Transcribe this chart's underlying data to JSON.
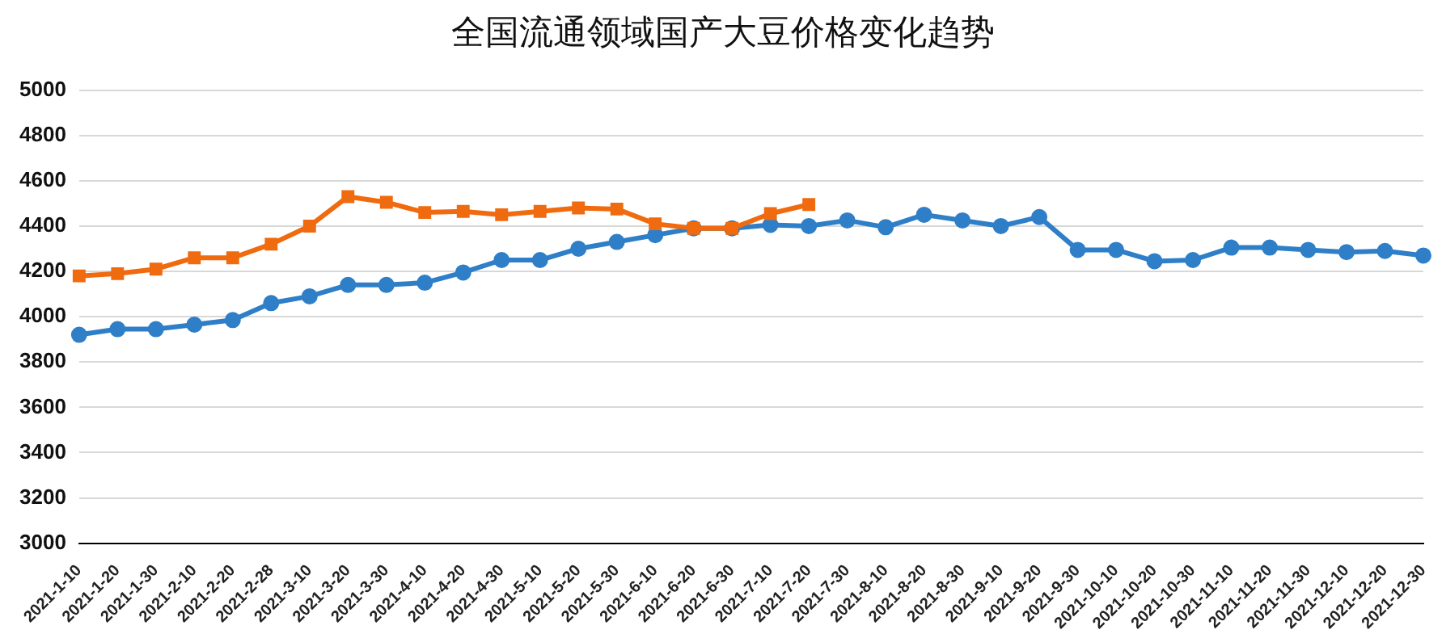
{
  "chart_data": {
    "type": "line",
    "title": "全国流通领域国产大豆价格变化趋势",
    "categories": [
      "2021-1-10",
      "2021-1-20",
      "2021-1-30",
      "2021-2-10",
      "2021-2-20",
      "2021-2-28",
      "2021-3-10",
      "2021-3-20",
      "2021-3-30",
      "2021-4-10",
      "2021-4-20",
      "2021-4-30",
      "2021-5-10",
      "2021-5-20",
      "2021-5-30",
      "2021-6-10",
      "2021-6-20",
      "2021-6-30",
      "2021-7-10",
      "2021-7-20",
      "2021-7-30",
      "2021-8-10",
      "2021-8-20",
      "2021-8-30",
      "2021-9-10",
      "2021-9-20",
      "2021-9-30",
      "2021-10-10",
      "2021-10-20",
      "2021-10-30",
      "2021-11-10",
      "2021-11-20",
      "2021-11-30",
      "2021-12-10",
      "2021-12-20",
      "2021-12-30"
    ],
    "series": [
      {
        "color": "#2e7fc7",
        "marker": "circle",
        "values": [
          3920,
          3945,
          3945,
          3965,
          3985,
          4060,
          4090,
          4140,
          4140,
          4150,
          4195,
          4250,
          4250,
          4300,
          4330,
          4360,
          4390,
          4390,
          4405,
          4400,
          4425,
          4395,
          4450,
          4425,
          4400,
          4440,
          4295,
          4295,
          4245,
          4250,
          4305,
          4305,
          4295,
          4285,
          4290,
          4270
        ]
      },
      {
        "color": "#f06a0f",
        "marker": "square",
        "values": [
          4180,
          4190,
          4210,
          4260,
          4260,
          4320,
          4400,
          4530,
          4505,
          4460,
          4465,
          4450,
          4465,
          4480,
          4475,
          4410,
          4390,
          4390,
          4455,
          4495,
          null,
          null,
          null,
          null,
          null,
          null,
          null,
          null,
          null,
          null,
          null,
          null,
          null,
          null,
          null,
          null
        ]
      }
    ],
    "ylim": [
      3000,
      5000
    ],
    "yticks": [
      3000,
      3200,
      3400,
      3600,
      3800,
      4000,
      4200,
      4400,
      4600,
      4800,
      5000
    ],
    "grid": "y",
    "legend": false,
    "line_style": "solid"
  }
}
